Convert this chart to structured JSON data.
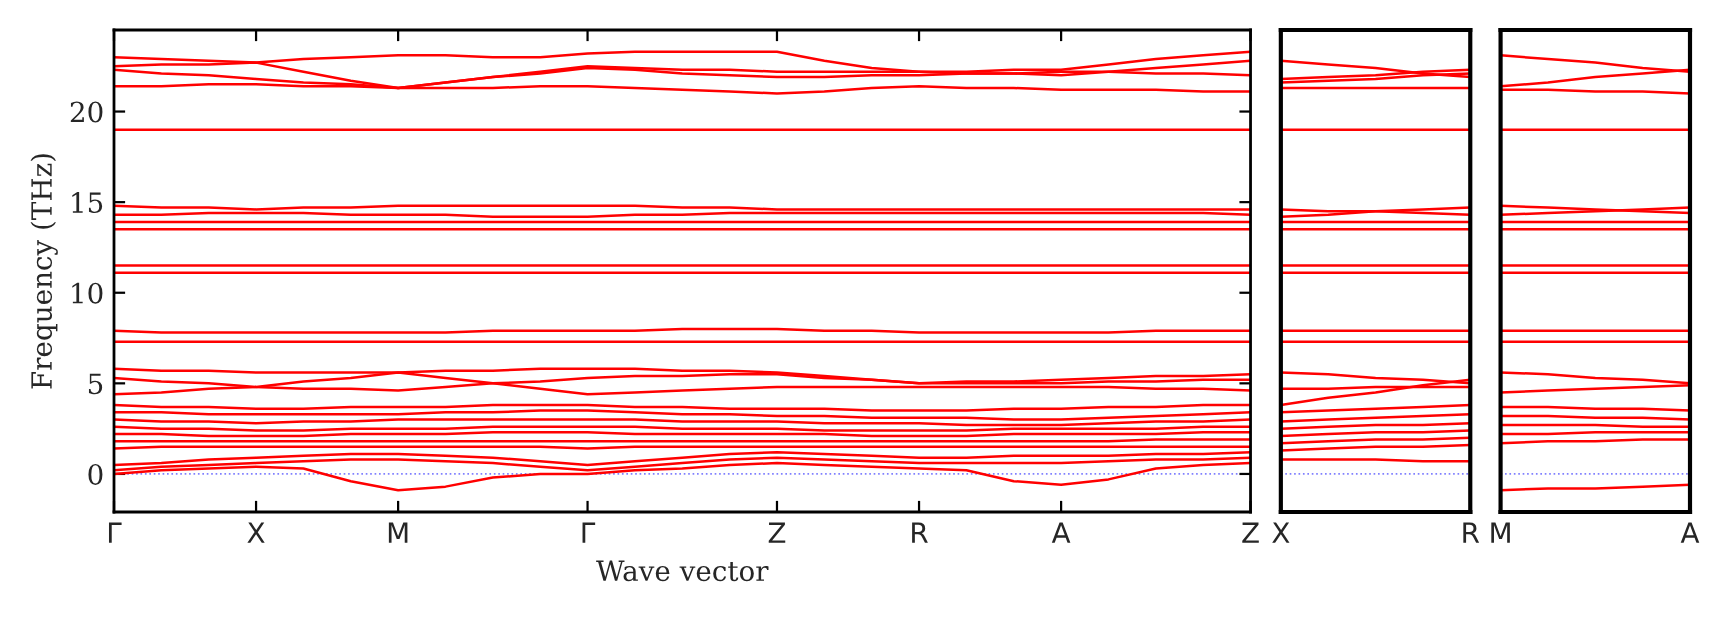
{
  "chart_data": [
    {
      "type": "line",
      "xlabel": "Wave vector",
      "ylabel": "Frequency (THz)",
      "categories": [
        "Γ",
        null,
        null,
        "X",
        null,
        null,
        "M",
        null,
        null,
        null,
        "Γ",
        null,
        null,
        null,
        "Z",
        null,
        null,
        "R",
        null,
        null,
        "A",
        null,
        null,
        null,
        "Z"
      ],
      "ylim": [
        -2.1,
        24.5
      ],
      "yticks": [
        0,
        5,
        10,
        15,
        20
      ],
      "ref_lines": [
        {
          "axis": "y",
          "value": 0,
          "color": "#8080ff",
          "line_style": "dotted"
        }
      ],
      "series": [
        {
          "color": "#ff0000",
          "values": [
            23.0,
            22.9,
            22.8,
            22.7,
            22.9,
            23.0,
            23.1,
            23.1,
            23.0,
            23.0,
            23.2,
            23.3,
            23.3,
            23.3,
            23.3,
            22.8,
            22.4,
            22.2,
            22.2,
            22.3,
            22.3,
            22.6,
            22.9,
            23.1,
            23.3
          ]
        },
        {
          "color": "#ff0000",
          "values": [
            22.5,
            22.6,
            22.6,
            22.7,
            22.2,
            21.7,
            21.3,
            21.6,
            21.9,
            22.2,
            22.5,
            22.4,
            22.3,
            22.3,
            22.2,
            22.2,
            22.2,
            22.2,
            22.1,
            22.1,
            22.0,
            22.2,
            22.4,
            22.6,
            22.8
          ]
        },
        {
          "color": "#ff0000",
          "values": [
            22.3,
            22.1,
            22.0,
            21.8,
            21.6,
            21.5,
            21.3,
            21.6,
            21.9,
            22.1,
            22.4,
            22.3,
            22.1,
            22.0,
            21.9,
            21.9,
            22.0,
            22.0,
            22.1,
            22.1,
            22.2,
            22.2,
            22.1,
            22.1,
            22.0
          ]
        },
        {
          "color": "#ff0000",
          "values": [
            21.4,
            21.4,
            21.5,
            21.5,
            21.4,
            21.4,
            21.3,
            21.3,
            21.3,
            21.4,
            21.4,
            21.3,
            21.2,
            21.1,
            21.0,
            21.1,
            21.3,
            21.4,
            21.3,
            21.3,
            21.2,
            21.2,
            21.2,
            21.1,
            21.1
          ]
        },
        {
          "color": "#ff0000",
          "values": [
            19.0,
            19.0,
            19.0,
            19.0,
            19.0,
            19.0,
            19.0,
            19.0,
            19.0,
            19.0,
            19.0,
            19.0,
            19.0,
            19.0,
            19.0,
            19.0,
            19.0,
            19.0,
            19.0,
            19.0,
            19.0,
            19.0,
            19.0,
            19.0,
            19.0
          ]
        },
        {
          "color": "#ff0000",
          "values": [
            14.8,
            14.7,
            14.7,
            14.6,
            14.7,
            14.7,
            14.8,
            14.8,
            14.8,
            14.8,
            14.8,
            14.8,
            14.7,
            14.7,
            14.6,
            14.6,
            14.6,
            14.6,
            14.6,
            14.6,
            14.6,
            14.6,
            14.6,
            14.6,
            14.6
          ]
        },
        {
          "color": "#ff0000",
          "values": [
            14.3,
            14.3,
            14.4,
            14.4,
            14.4,
            14.3,
            14.3,
            14.3,
            14.2,
            14.2,
            14.2,
            14.3,
            14.3,
            14.4,
            14.4,
            14.4,
            14.4,
            14.4,
            14.4,
            14.4,
            14.4,
            14.4,
            14.4,
            14.4,
            14.3
          ]
        },
        {
          "color": "#ff0000",
          "values": [
            13.9,
            13.9,
            13.9,
            13.9,
            13.9,
            13.9,
            13.9,
            13.9,
            13.9,
            13.9,
            13.9,
            13.9,
            13.9,
            13.9,
            13.9,
            13.9,
            13.9,
            13.9,
            13.9,
            13.9,
            13.9,
            13.9,
            13.9,
            13.9,
            13.9
          ]
        },
        {
          "color": "#ff0000",
          "values": [
            13.5,
            13.5,
            13.5,
            13.5,
            13.5,
            13.5,
            13.5,
            13.5,
            13.5,
            13.5,
            13.5,
            13.5,
            13.5,
            13.5,
            13.5,
            13.5,
            13.5,
            13.5,
            13.5,
            13.5,
            13.5,
            13.5,
            13.5,
            13.5,
            13.5
          ]
        },
        {
          "color": "#ff0000",
          "values": [
            11.5,
            11.5,
            11.5,
            11.5,
            11.5,
            11.5,
            11.5,
            11.5,
            11.5,
            11.5,
            11.5,
            11.5,
            11.5,
            11.5,
            11.5,
            11.5,
            11.5,
            11.5,
            11.5,
            11.5,
            11.5,
            11.5,
            11.5,
            11.5,
            11.5
          ]
        },
        {
          "color": "#ff0000",
          "values": [
            11.1,
            11.1,
            11.1,
            11.1,
            11.1,
            11.1,
            11.1,
            11.1,
            11.1,
            11.1,
            11.1,
            11.1,
            11.1,
            11.1,
            11.1,
            11.1,
            11.1,
            11.1,
            11.1,
            11.1,
            11.1,
            11.1,
            11.1,
            11.1,
            11.1
          ]
        },
        {
          "color": "#ff0000",
          "values": [
            7.9,
            7.8,
            7.8,
            7.8,
            7.8,
            7.8,
            7.8,
            7.8,
            7.9,
            7.9,
            7.9,
            7.9,
            8.0,
            8.0,
            8.0,
            7.9,
            7.9,
            7.8,
            7.8,
            7.8,
            7.8,
            7.8,
            7.9,
            7.9,
            7.9
          ]
        },
        {
          "color": "#ff0000",
          "values": [
            7.3,
            7.3,
            7.3,
            7.3,
            7.3,
            7.3,
            7.3,
            7.3,
            7.3,
            7.3,
            7.3,
            7.3,
            7.3,
            7.3,
            7.3,
            7.3,
            7.3,
            7.3,
            7.3,
            7.3,
            7.3,
            7.3,
            7.3,
            7.3,
            7.3
          ]
        },
        {
          "color": "#ff0000",
          "values": [
            5.8,
            5.7,
            5.7,
            5.6,
            5.6,
            5.6,
            5.6,
            5.7,
            5.7,
            5.8,
            5.8,
            5.8,
            5.7,
            5.7,
            5.6,
            5.4,
            5.2,
            5.0,
            5.1,
            5.1,
            5.2,
            5.3,
            5.4,
            5.4,
            5.5
          ]
        },
        {
          "color": "#ff0000",
          "values": [
            5.3,
            5.1,
            5.0,
            4.8,
            4.7,
            4.7,
            4.6,
            4.8,
            5.0,
            5.1,
            5.3,
            5.4,
            5.4,
            5.5,
            5.5,
            5.3,
            5.2,
            5.0,
            5.0,
            5.0,
            5.0,
            5.1,
            5.1,
            5.2,
            5.2
          ]
        },
        {
          "color": "#ff0000",
          "values": [
            4.4,
            4.5,
            4.7,
            4.8,
            5.1,
            5.3,
            5.6,
            5.3,
            5.0,
            4.7,
            4.4,
            4.5,
            4.6,
            4.7,
            4.8,
            4.8,
            4.8,
            4.8,
            4.8,
            4.8,
            4.8,
            4.8,
            4.7,
            4.7,
            4.6
          ]
        },
        {
          "color": "#ff0000",
          "values": [
            3.8,
            3.7,
            3.7,
            3.6,
            3.6,
            3.7,
            3.7,
            3.7,
            3.8,
            3.8,
            3.8,
            3.7,
            3.7,
            3.6,
            3.6,
            3.6,
            3.5,
            3.5,
            3.5,
            3.6,
            3.6,
            3.7,
            3.7,
            3.8,
            3.8
          ]
        },
        {
          "color": "#ff0000",
          "values": [
            3.4,
            3.4,
            3.3,
            3.3,
            3.3,
            3.3,
            3.3,
            3.4,
            3.4,
            3.5,
            3.5,
            3.4,
            3.3,
            3.3,
            3.2,
            3.2,
            3.1,
            3.1,
            3.1,
            3.0,
            3.0,
            3.1,
            3.2,
            3.3,
            3.4
          ]
        },
        {
          "color": "#ff0000",
          "values": [
            3.0,
            2.9,
            2.9,
            2.8,
            2.9,
            2.9,
            3.0,
            3.0,
            3.0,
            3.0,
            3.0,
            3.0,
            2.9,
            2.9,
            2.9,
            2.8,
            2.8,
            2.8,
            2.7,
            2.7,
            2.7,
            2.8,
            2.9,
            2.9,
            3.0
          ]
        },
        {
          "color": "#ff0000",
          "values": [
            2.6,
            2.5,
            2.5,
            2.4,
            2.4,
            2.5,
            2.5,
            2.5,
            2.6,
            2.6,
            2.6,
            2.6,
            2.5,
            2.5,
            2.5,
            2.4,
            2.4,
            2.4,
            2.4,
            2.5,
            2.5,
            2.5,
            2.5,
            2.6,
            2.6
          ]
        },
        {
          "color": "#ff0000",
          "values": [
            2.2,
            2.2,
            2.1,
            2.1,
            2.1,
            2.2,
            2.2,
            2.2,
            2.3,
            2.3,
            2.3,
            2.2,
            2.2,
            2.2,
            2.2,
            2.2,
            2.1,
            2.1,
            2.1,
            2.2,
            2.2,
            2.2,
            2.2,
            2.3,
            2.3
          ]
        },
        {
          "color": "#ff0000",
          "values": [
            1.8,
            1.8,
            1.8,
            1.8,
            1.8,
            1.8,
            1.8,
            1.8,
            1.8,
            1.8,
            1.8,
            1.8,
            1.8,
            1.8,
            1.8,
            1.8,
            1.8,
            1.8,
            1.8,
            1.8,
            1.8,
            1.8,
            1.9,
            1.9,
            1.9
          ]
        },
        {
          "color": "#ff0000",
          "values": [
            1.4,
            1.5,
            1.5,
            1.5,
            1.5,
            1.5,
            1.5,
            1.5,
            1.5,
            1.5,
            1.4,
            1.5,
            1.5,
            1.5,
            1.5,
            1.5,
            1.5,
            1.5,
            1.5,
            1.5,
            1.5,
            1.5,
            1.5,
            1.5,
            1.5
          ]
        },
        {
          "color": "#ff0000",
          "values": [
            0.5,
            0.6,
            0.8,
            0.9,
            1.0,
            1.1,
            1.1,
            1.0,
            0.9,
            0.7,
            0.5,
            0.7,
            0.9,
            1.1,
            1.2,
            1.1,
            1.0,
            0.9,
            0.9,
            1.0,
            1.0,
            1.0,
            1.1,
            1.1,
            1.2
          ]
        },
        {
          "color": "#ff0000",
          "values": [
            0.2,
            0.4,
            0.5,
            0.6,
            0.7,
            0.8,
            0.8,
            0.7,
            0.6,
            0.4,
            0.2,
            0.4,
            0.6,
            0.8,
            0.9,
            0.8,
            0.7,
            0.6,
            0.6,
            0.6,
            0.6,
            0.7,
            0.8,
            0.8,
            0.9
          ]
        },
        {
          "color": "#ff0000",
          "values": [
            0,
            0.2,
            0.3,
            0.4,
            0.3,
            -0.4,
            -0.9,
            -0.7,
            -0.2,
            0.0,
            0,
            0.2,
            0.3,
            0.5,
            0.6,
            0.5,
            0.4,
            0.3,
            0.2,
            -0.4,
            -0.6,
            -0.3,
            0.3,
            0.5,
            0.6
          ]
        }
      ]
    },
    {
      "type": "line",
      "categories": [
        "X",
        null,
        null,
        null,
        "R"
      ],
      "ylim": [
        -2.1,
        24.5
      ],
      "tick_labels": "x",
      "ref_lines": [
        {
          "axis": "y",
          "value": 0,
          "color": "#8080ff",
          "line_style": "dotted"
        }
      ],
      "series": [
        {
          "color": "#ff0000",
          "values": [
            22.8,
            22.6,
            22.4,
            22.1,
            21.9
          ]
        },
        {
          "color": "#ff0000",
          "values": [
            21.8,
            21.9,
            22.0,
            22.2,
            22.3
          ]
        },
        {
          "color": "#ff0000",
          "values": [
            21.6,
            21.7,
            21.8,
            22.0,
            22.1
          ]
        },
        {
          "color": "#ff0000",
          "values": [
            21.3,
            21.3,
            21.3,
            21.3,
            21.3
          ]
        },
        {
          "color": "#ff0000",
          "values": [
            19.0,
            19.0,
            19.0,
            19.0,
            19.0
          ]
        },
        {
          "color": "#ff0000",
          "values": [
            14.6,
            14.5,
            14.5,
            14.4,
            14.3
          ]
        },
        {
          "color": "#ff0000",
          "values": [
            14.2,
            14.3,
            14.5,
            14.6,
            14.7
          ]
        },
        {
          "color": "#ff0000",
          "values": [
            13.9,
            13.9,
            13.9,
            13.9,
            13.9
          ]
        },
        {
          "color": "#ff0000",
          "values": [
            13.5,
            13.5,
            13.5,
            13.5,
            13.5
          ]
        },
        {
          "color": "#ff0000",
          "values": [
            11.5,
            11.5,
            11.5,
            11.5,
            11.5
          ]
        },
        {
          "color": "#ff0000",
          "values": [
            11.1,
            11.1,
            11.1,
            11.1,
            11.1
          ]
        },
        {
          "color": "#ff0000",
          "values": [
            7.9,
            7.9,
            7.9,
            7.9,
            7.9
          ]
        },
        {
          "color": "#ff0000",
          "values": [
            7.3,
            7.3,
            7.3,
            7.3,
            7.3
          ]
        },
        {
          "color": "#ff0000",
          "values": [
            5.6,
            5.5,
            5.3,
            5.2,
            5.0
          ]
        },
        {
          "color": "#ff0000",
          "values": [
            4.7,
            4.7,
            4.8,
            4.8,
            4.8
          ]
        },
        {
          "color": "#ff0000",
          "values": [
            3.8,
            4.2,
            4.5,
            4.9,
            5.2
          ]
        },
        {
          "color": "#ff0000",
          "values": [
            3.4,
            3.5,
            3.6,
            3.7,
            3.8
          ]
        },
        {
          "color": "#ff0000",
          "values": [
            2.9,
            3.0,
            3.1,
            3.2,
            3.3
          ]
        },
        {
          "color": "#ff0000",
          "values": [
            2.5,
            2.6,
            2.7,
            2.7,
            2.8
          ]
        },
        {
          "color": "#ff0000",
          "values": [
            2.1,
            2.2,
            2.3,
            2.3,
            2.4
          ]
        },
        {
          "color": "#ff0000",
          "values": [
            1.7,
            1.8,
            1.9,
            1.9,
            2.0
          ]
        },
        {
          "color": "#ff0000",
          "values": [
            1.3,
            1.4,
            1.5,
            1.5,
            1.6
          ]
        },
        {
          "color": "#ff0000",
          "values": [
            0.8,
            0.8,
            0.8,
            0.7,
            0.7
          ]
        }
      ]
    },
    {
      "type": "line",
      "categories": [
        "M",
        null,
        null,
        null,
        "A"
      ],
      "ylim": [
        -2.1,
        24.5
      ],
      "tick_labels": "x",
      "ref_lines": [
        {
          "axis": "y",
          "value": 0,
          "color": "#8080ff",
          "line_style": "dotted"
        }
      ],
      "series": [
        {
          "color": "#ff0000",
          "values": [
            23.1,
            22.9,
            22.7,
            22.4,
            22.2
          ]
        },
        {
          "color": "#ff0000",
          "values": [
            21.4,
            21.6,
            21.9,
            22.1,
            22.3
          ]
        },
        {
          "color": "#ff0000",
          "values": [
            21.2,
            21.2,
            21.1,
            21.1,
            21.0
          ]
        },
        {
          "color": "#ff0000",
          "values": [
            19.0,
            19.0,
            19.0,
            19.0,
            19.0
          ]
        },
        {
          "color": "#ff0000",
          "values": [
            14.8,
            14.7,
            14.6,
            14.5,
            14.4
          ]
        },
        {
          "color": "#ff0000",
          "values": [
            14.3,
            14.4,
            14.5,
            14.6,
            14.7
          ]
        },
        {
          "color": "#ff0000",
          "values": [
            13.9,
            13.9,
            13.9,
            13.9,
            13.9
          ]
        },
        {
          "color": "#ff0000",
          "values": [
            13.5,
            13.5,
            13.5,
            13.5,
            13.5
          ]
        },
        {
          "color": "#ff0000",
          "values": [
            11.5,
            11.5,
            11.5,
            11.5,
            11.5
          ]
        },
        {
          "color": "#ff0000",
          "values": [
            11.1,
            11.1,
            11.1,
            11.1,
            11.1
          ]
        },
        {
          "color": "#ff0000",
          "values": [
            7.9,
            7.9,
            7.9,
            7.9,
            7.9
          ]
        },
        {
          "color": "#ff0000",
          "values": [
            7.3,
            7.3,
            7.3,
            7.3,
            7.3
          ]
        },
        {
          "color": "#ff0000",
          "values": [
            5.6,
            5.5,
            5.3,
            5.2,
            5.0
          ]
        },
        {
          "color": "#ff0000",
          "values": [
            4.5,
            4.6,
            4.7,
            4.8,
            4.9
          ]
        },
        {
          "color": "#ff0000",
          "values": [
            3.7,
            3.7,
            3.6,
            3.6,
            3.5
          ]
        },
        {
          "color": "#ff0000",
          "values": [
            3.2,
            3.2,
            3.1,
            3.1,
            3.0
          ]
        },
        {
          "color": "#ff0000",
          "values": [
            2.7,
            2.7,
            2.7,
            2.6,
            2.6
          ]
        },
        {
          "color": "#ff0000",
          "values": [
            2.2,
            2.2,
            2.3,
            2.3,
            2.3
          ]
        },
        {
          "color": "#ff0000",
          "values": [
            1.7,
            1.8,
            1.8,
            1.9,
            1.9
          ]
        },
        {
          "color": "#ff0000",
          "values": [
            -0.9,
            -0.8,
            -0.8,
            -0.7,
            -0.6
          ]
        }
      ]
    }
  ]
}
